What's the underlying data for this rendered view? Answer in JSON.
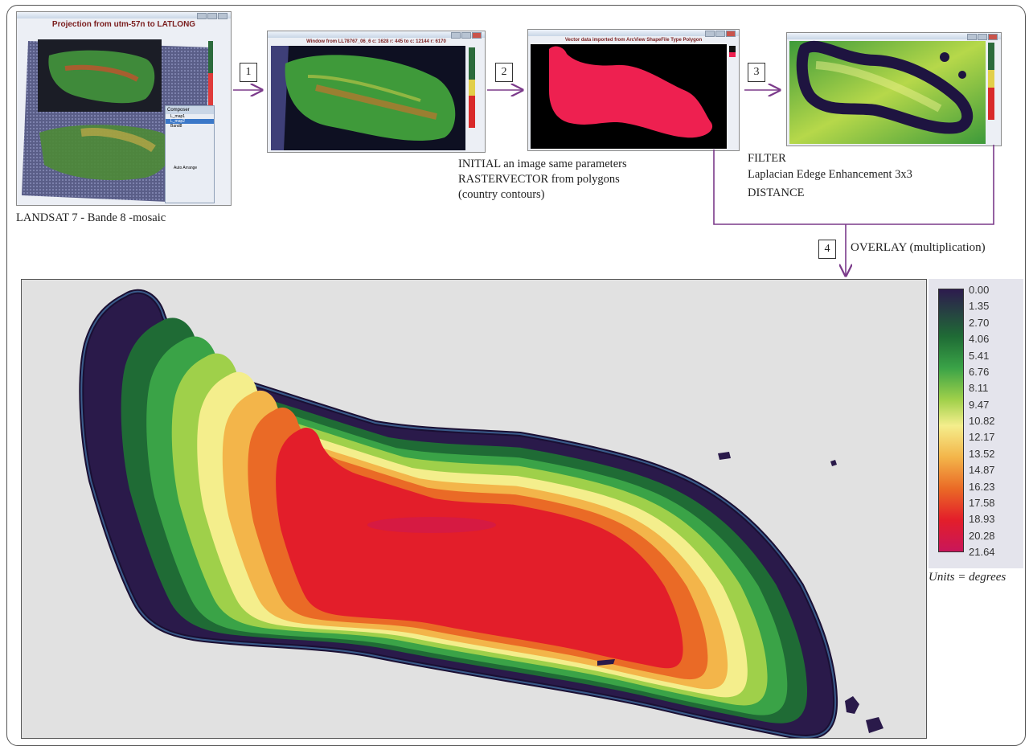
{
  "steps": {
    "s1": "1",
    "s2": "2",
    "s3": "3",
    "s4": "4"
  },
  "panels": {
    "p1": {
      "title": "Projection from utm-57n to LATLONG",
      "caption": "LANDSAT 7 - Bande 8 -mosaic",
      "composer_title": "Composer",
      "layers": [
        "L_map1",
        "L_map2",
        "Band8"
      ],
      "auto_arrange": "Auto Arrange"
    },
    "p2": {
      "title": "Window from LL78767_06_6 c: 1628 r: 445 to c: 12144 r: 6170"
    },
    "p3": {
      "title": "Vector data imported from ArcView ShapeFile Type Polygon",
      "caption": [
        "INITIAL an image same parameters",
        "RASTERVECTOR from polygons",
        "(country contours)"
      ]
    },
    "p4": {
      "caption": [
        "FILTER",
        "Laplacian Edege Enhancement 3x3",
        "DISTANCE"
      ]
    }
  },
  "overlay_label": "OVERLAY (multiplication)",
  "legend": {
    "ticks": [
      "0.00",
      "1.35",
      "2.70",
      "4.06",
      "5.41",
      "6.76",
      "8.11",
      "9.47",
      "10.82",
      "12.17",
      "13.52",
      "14.87",
      "16.23",
      "17.58",
      "18.93",
      "20.28",
      "21.64"
    ],
    "units": "Units = degrees",
    "colors": [
      "#2d1b4e",
      "#1f6b35",
      "#3aa347",
      "#9fd04a",
      "#f4ee8c",
      "#f3b54a",
      "#ea6a26",
      "#e31e2a",
      "#c9165a"
    ]
  },
  "colors": {
    "arrow": "#7b3a8a",
    "background_map": "#e1e1e1",
    "island_edge": "#2a1a4a"
  }
}
